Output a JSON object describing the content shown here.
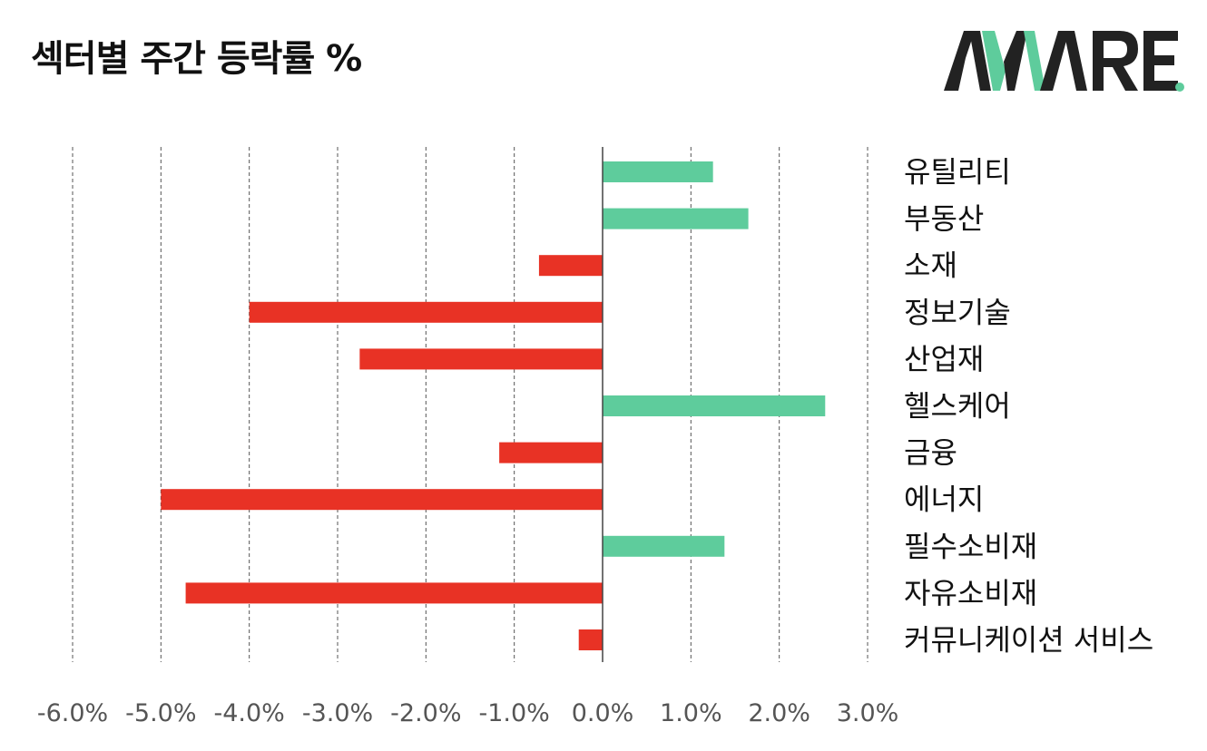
{
  "header": {
    "title": "섹터별 주간 등락률 %",
    "logo_text": "AWARE"
  },
  "colors": {
    "positive": "#5ecc9c",
    "negative": "#e83225",
    "logo_dark": "#222222",
    "logo_accent": "#5ecc9c"
  },
  "chart_data": {
    "type": "bar",
    "orientation": "horizontal",
    "title": "섹터별 주간 등락률 %",
    "categories": [
      "유틸리티",
      "부동산",
      "소재",
      "정보기술",
      "산업재",
      "헬스케어",
      "금융",
      "에너지",
      "필수소비재",
      "자유소비재",
      "커뮤니케이션 서비스"
    ],
    "values": [
      1.25,
      1.65,
      -0.72,
      -4.0,
      -2.75,
      2.52,
      -1.17,
      -5.0,
      1.38,
      -4.72,
      -0.27
    ],
    "xlim": [
      -6.0,
      3.0
    ],
    "xticks": [
      "-6.0%",
      "-5.0%",
      "-4.0%",
      "-3.0%",
      "-2.0%",
      "-1.0%",
      "0.0%",
      "1.0%",
      "2.0%",
      "3.0%"
    ],
    "grid": true,
    "legend": "none"
  }
}
